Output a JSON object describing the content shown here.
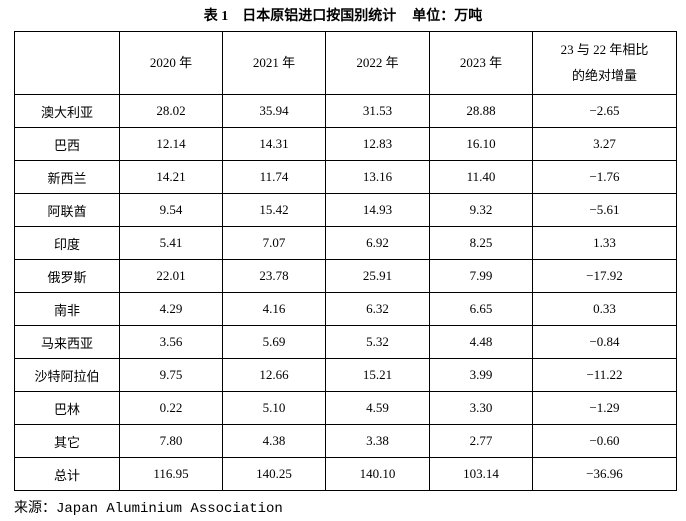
{
  "title": "表 1　日本原铝进口按国别统计",
  "unit": "单位：万吨",
  "table": {
    "header": [
      "",
      "2020 年",
      "2021 年",
      "2022 年",
      "2023 年",
      [
        "23 与 22 年相比",
        "的绝对增量"
      ]
    ],
    "rows": [
      [
        "澳大利亚",
        "28.02",
        "35.94",
        "31.53",
        "28.88",
        "−2.65"
      ],
      [
        "巴西",
        "12.14",
        "14.31",
        "12.83",
        "16.10",
        "3.27"
      ],
      [
        "新西兰",
        "14.21",
        "11.74",
        "13.16",
        "11.40",
        "−1.76"
      ],
      [
        "阿联酋",
        "9.54",
        "15.42",
        "14.93",
        "9.32",
        "−5.61"
      ],
      [
        "印度",
        "5.41",
        "7.07",
        "6.92",
        "8.25",
        "1.33"
      ],
      [
        "俄罗斯",
        "22.01",
        "23.78",
        "25.91",
        "7.99",
        "−17.92"
      ],
      [
        "南非",
        "4.29",
        "4.16",
        "6.32",
        "6.65",
        "0.33"
      ],
      [
        "马来西亚",
        "3.56",
        "5.69",
        "5.32",
        "4.48",
        "−0.84"
      ],
      [
        "沙特阿拉伯",
        "9.75",
        "12.66",
        "15.21",
        "3.99",
        "−11.22"
      ],
      [
        "巴林",
        "0.22",
        "5.10",
        "4.59",
        "3.30",
        "−1.29"
      ],
      [
        "其它",
        "7.80",
        "4.38",
        "3.38",
        "2.77",
        "−0.60"
      ],
      [
        "总计",
        "116.95",
        "140.25",
        "140.10",
        "103.14",
        "−36.96"
      ]
    ]
  },
  "source": "来源：Japan Aluminium Association"
}
